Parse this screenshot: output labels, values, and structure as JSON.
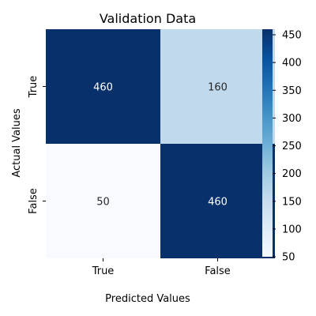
{
  "chart_data": {
    "type": "heatmap",
    "title": "Validation Data",
    "xlabel": "Predicted Values",
    "ylabel": "Actual Values",
    "x_categories": [
      "True",
      "False"
    ],
    "y_categories": [
      "True",
      "False"
    ],
    "values": [
      [
        460,
        160
      ],
      [
        50,
        460
      ]
    ],
    "colorbar": {
      "min": 50,
      "max": 460,
      "ticks": [
        50,
        100,
        150,
        200,
        250,
        300,
        350,
        400,
        450
      ],
      "colormap": "Blues",
      "low_color": "#f7fbff",
      "high_color": "#08306b"
    }
  }
}
